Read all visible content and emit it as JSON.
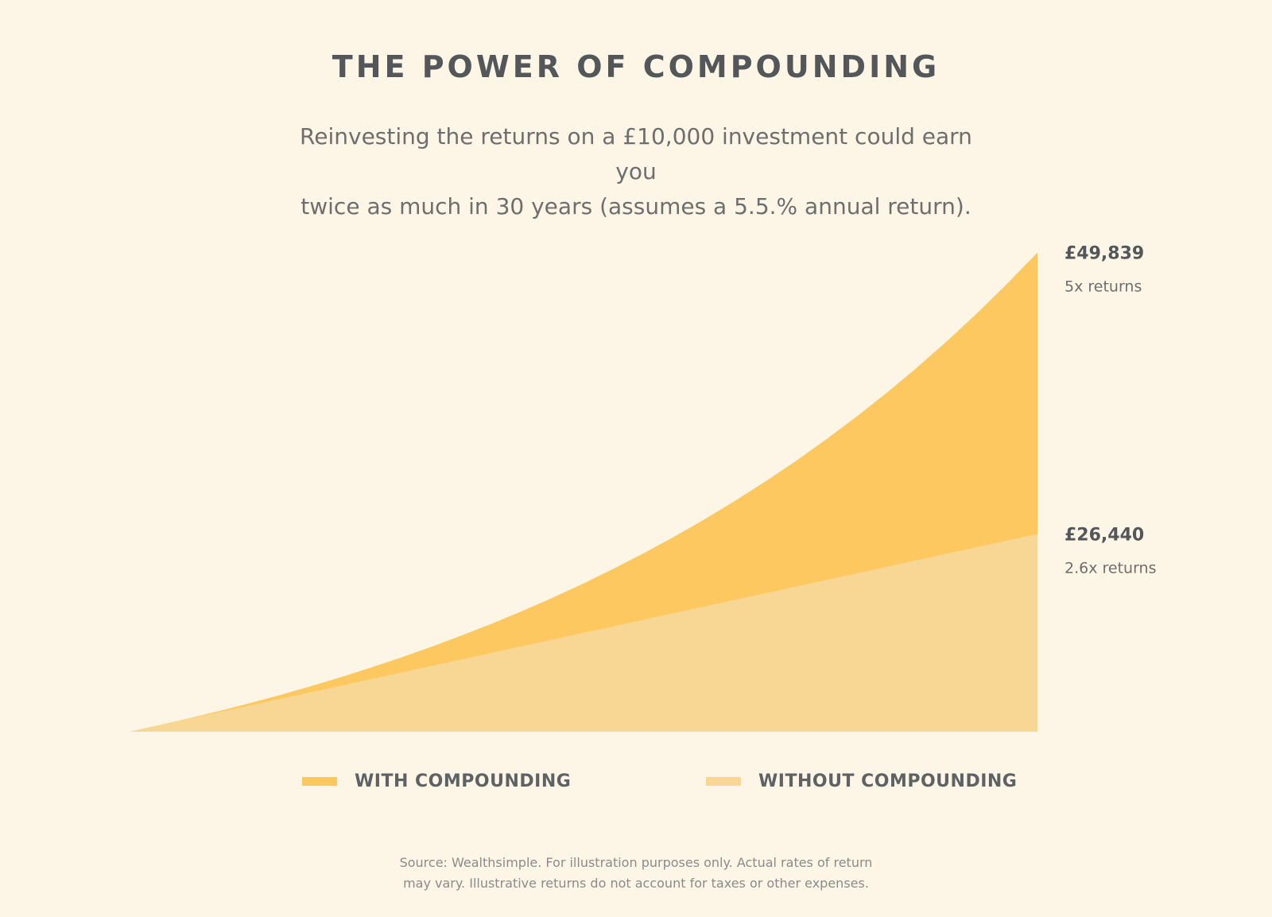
{
  "header": {
    "title": "THE POWER OF COMPOUNDING",
    "subtitle_line1": "Reinvesting the returns on a £10,000 investment could earn you",
    "subtitle_line2": "twice as much in 30 years (assumes a 5.5.% annual return)."
  },
  "chart_data": {
    "type": "area",
    "title": "THE POWER OF COMPOUNDING",
    "x": [
      0,
      1,
      2,
      3,
      4,
      5,
      6,
      7,
      8,
      9,
      10,
      11,
      12,
      13,
      14,
      15,
      16,
      17,
      18,
      19,
      20,
      21,
      22,
      23,
      24,
      25,
      26,
      27,
      28,
      29,
      30
    ],
    "xlim": [
      0,
      30
    ],
    "ylim": [
      10000,
      50000
    ],
    "grid": false,
    "legend_position": "bottom",
    "series": [
      {
        "name": "WITH COMPOUNDING",
        "color": "#fdc85f",
        "values": [
          10000,
          10550,
          11130,
          11742,
          12388,
          13070,
          13788,
          14547,
          15347,
          16191,
          17081,
          18021,
          19012,
          20058,
          21161,
          22325,
          23553,
          24848,
          26215,
          27656,
          29178,
          30782,
          32475,
          34262,
          36146,
          38134,
          40231,
          42444,
          44778,
          47241,
          49839
        ],
        "end_label": "£49,839",
        "end_sublabel": "5x returns"
      },
      {
        "name": "WITHOUT COMPOUNDING",
        "color": "#f8d794",
        "values": [
          10000,
          10548,
          11096,
          11644,
          12192,
          12740,
          13288,
          13836,
          14384,
          14932,
          15480,
          16028,
          16576,
          17124,
          17672,
          18220,
          18768,
          19316,
          19864,
          20412,
          20960,
          21508,
          22056,
          22604,
          23152,
          23700,
          24248,
          24796,
          25344,
          25892,
          26440
        ],
        "end_label": "£26,440",
        "end_sublabel": "2.6x returns"
      }
    ]
  },
  "footer": {
    "source_line1": "Source: Wealthsimple. For illustration purposes only. Actual rates of return",
    "source_line2": "may vary. Illustrative returns do not account for taxes or other expenses."
  }
}
